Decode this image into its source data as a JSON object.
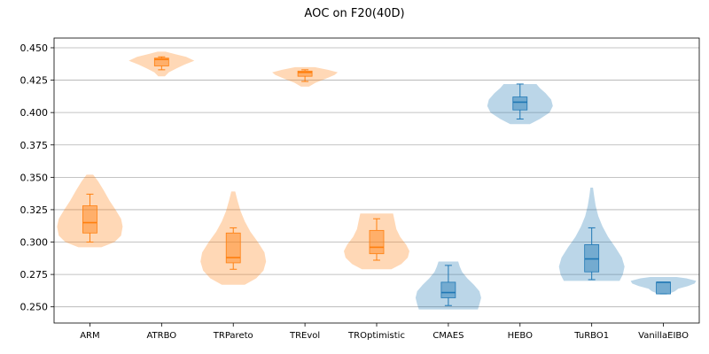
{
  "chart_data": {
    "type": "violin",
    "title": "AOC on F20(40D)",
    "xlabel": "",
    "ylabel": "",
    "ylim": [
      0.2375,
      0.4575
    ],
    "yticks": [
      "0.250",
      "0.275",
      "0.300",
      "0.325",
      "0.350",
      "0.375",
      "0.400",
      "0.425",
      "0.450"
    ],
    "grid": "horizontal",
    "colors": {
      "group_a": "#ff7f0e",
      "group_b": "#1f77b4",
      "grid": "#b0b0b0"
    },
    "categories": [
      "ARM",
      "ATRBO",
      "TRPareto",
      "TREvol",
      "TROptimistic",
      "CMAES",
      "HEBO",
      "TuRBO1",
      "VanillaEIBO"
    ],
    "series": [
      {
        "category": "ARM",
        "color_group": "group_a",
        "min": 0.296,
        "max": 0.352,
        "whisker_low": 0.3,
        "q1": 0.307,
        "median": 0.315,
        "q3": 0.328,
        "whisker_high": 0.337,
        "profile": [
          [
            0.296,
            0.35
          ],
          [
            0.3,
            0.75
          ],
          [
            0.305,
            0.95
          ],
          [
            0.312,
            1.0
          ],
          [
            0.318,
            0.95
          ],
          [
            0.325,
            0.78
          ],
          [
            0.332,
            0.6
          ],
          [
            0.34,
            0.42
          ],
          [
            0.347,
            0.25
          ],
          [
            0.352,
            0.1
          ]
        ]
      },
      {
        "category": "ATRBO",
        "color_group": "group_a",
        "min": 0.428,
        "max": 0.447,
        "whisker_low": 0.433,
        "q1": 0.436,
        "median": 0.441,
        "q3": 0.442,
        "whisker_high": 0.443,
        "profile": [
          [
            0.428,
            0.1
          ],
          [
            0.431,
            0.22
          ],
          [
            0.434,
            0.45
          ],
          [
            0.437,
            0.7
          ],
          [
            0.44,
            1.0
          ],
          [
            0.443,
            0.75
          ],
          [
            0.445,
            0.42
          ],
          [
            0.447,
            0.12
          ]
        ]
      },
      {
        "category": "TRPareto",
        "color_group": "group_a",
        "min": 0.267,
        "max": 0.339,
        "whisker_low": 0.279,
        "q1": 0.284,
        "median": 0.288,
        "q3": 0.307,
        "whisker_high": 0.311,
        "profile": [
          [
            0.267,
            0.35
          ],
          [
            0.272,
            0.7
          ],
          [
            0.278,
            0.92
          ],
          [
            0.285,
            1.0
          ],
          [
            0.292,
            0.95
          ],
          [
            0.3,
            0.75
          ],
          [
            0.308,
            0.52
          ],
          [
            0.316,
            0.35
          ],
          [
            0.324,
            0.22
          ],
          [
            0.332,
            0.13
          ],
          [
            0.339,
            0.06
          ]
        ]
      },
      {
        "category": "TREvol",
        "color_group": "group_a",
        "min": 0.42,
        "max": 0.435,
        "whisker_low": 0.424,
        "q1": 0.428,
        "median": 0.431,
        "q3": 0.432,
        "whisker_high": 0.433,
        "profile": [
          [
            0.42,
            0.12
          ],
          [
            0.423,
            0.32
          ],
          [
            0.426,
            0.62
          ],
          [
            0.429,
            0.9
          ],
          [
            0.431,
            1.0
          ],
          [
            0.433,
            0.7
          ],
          [
            0.435,
            0.3
          ]
        ]
      },
      {
        "category": "TROptimistic",
        "color_group": "group_a",
        "min": 0.279,
        "max": 0.322,
        "whisker_low": 0.286,
        "q1": 0.291,
        "median": 0.296,
        "q3": 0.309,
        "whisker_high": 0.318,
        "profile": [
          [
            0.279,
            0.45
          ],
          [
            0.283,
            0.75
          ],
          [
            0.288,
            0.95
          ],
          [
            0.293,
            1.0
          ],
          [
            0.298,
            0.9
          ],
          [
            0.304,
            0.72
          ],
          [
            0.31,
            0.6
          ],
          [
            0.316,
            0.55
          ],
          [
            0.322,
            0.5
          ]
        ]
      },
      {
        "category": "CMAES",
        "color_group": "group_b",
        "min": 0.248,
        "max": 0.285,
        "whisker_low": 0.251,
        "q1": 0.257,
        "median": 0.261,
        "q3": 0.269,
        "whisker_high": 0.282,
        "profile": [
          [
            0.248,
            0.9
          ],
          [
            0.252,
            0.95
          ],
          [
            0.257,
            1.0
          ],
          [
            0.262,
            0.95
          ],
          [
            0.267,
            0.78
          ],
          [
            0.272,
            0.58
          ],
          [
            0.277,
            0.42
          ],
          [
            0.281,
            0.35
          ],
          [
            0.285,
            0.3
          ]
        ]
      },
      {
        "category": "HEBO",
        "color_group": "group_b",
        "min": 0.391,
        "max": 0.422,
        "whisker_low": 0.395,
        "q1": 0.402,
        "median": 0.408,
        "q3": 0.412,
        "whisker_high": 0.422,
        "profile": [
          [
            0.391,
            0.3
          ],
          [
            0.395,
            0.6
          ],
          [
            0.4,
            0.9
          ],
          [
            0.405,
            1.0
          ],
          [
            0.41,
            0.95
          ],
          [
            0.415,
            0.78
          ],
          [
            0.419,
            0.6
          ],
          [
            0.422,
            0.5
          ]
        ]
      },
      {
        "category": "TuRBO1",
        "color_group": "group_b",
        "min": 0.27,
        "max": 0.342,
        "whisker_low": 0.271,
        "q1": 0.277,
        "median": 0.287,
        "q3": 0.298,
        "whisker_high": 0.311,
        "profile": [
          [
            0.27,
            0.85
          ],
          [
            0.275,
            0.95
          ],
          [
            0.281,
            1.0
          ],
          [
            0.288,
            0.92
          ],
          [
            0.296,
            0.72
          ],
          [
            0.304,
            0.5
          ],
          [
            0.312,
            0.33
          ],
          [
            0.32,
            0.2
          ],
          [
            0.328,
            0.12
          ],
          [
            0.336,
            0.07
          ],
          [
            0.342,
            0.04
          ]
        ]
      },
      {
        "category": "VanillaEIBO",
        "color_group": "group_b",
        "min": 0.26,
        "max": 0.273,
        "whisker_low": 0.26,
        "q1": 0.26,
        "median": 0.269,
        "q3": 0.269,
        "whisker_high": 0.269,
        "profile": [
          [
            0.26,
            0.15
          ],
          [
            0.262,
            0.35
          ],
          [
            0.264,
            0.45
          ],
          [
            0.266,
            0.75
          ],
          [
            0.268,
            0.95
          ],
          [
            0.27,
            1.0
          ],
          [
            0.272,
            0.7
          ],
          [
            0.273,
            0.4
          ]
        ]
      }
    ]
  }
}
